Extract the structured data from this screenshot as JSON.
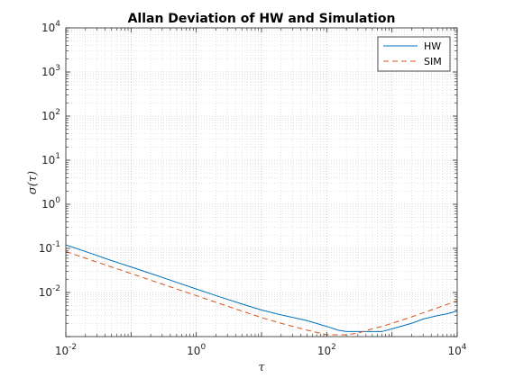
{
  "chart_data": {
    "type": "line",
    "title": "Allan Deviation of HW and Simulation",
    "xlabel": "τ",
    "ylabel": "σ(τ)",
    "xscale": "log",
    "yscale": "log",
    "xlim": [
      0.01,
      10000
    ],
    "ylim": [
      0.001,
      10000
    ],
    "x_tick_exponents": [
      -2,
      0,
      2,
      4
    ],
    "y_tick_exponents": [
      -2,
      -1,
      0,
      1,
      2,
      3,
      4
    ],
    "grid": true,
    "minor_grid": true,
    "legend_position": "top-right",
    "series": [
      {
        "name": "HW",
        "color": "#0072BD",
        "style": "solid",
        "x": [
          0.01,
          0.02,
          0.05,
          0.1,
          0.2,
          0.5,
          1,
          2,
          5,
          10,
          20,
          50,
          100,
          150,
          200,
          300,
          500,
          700,
          1000,
          2000,
          3000,
          5000,
          7000,
          10000
        ],
        "y": [
          0.12,
          0.085,
          0.053,
          0.038,
          0.027,
          0.017,
          0.012,
          0.0085,
          0.0055,
          0.004,
          0.0031,
          0.0023,
          0.0017,
          0.0014,
          0.0013,
          0.0013,
          0.0013,
          0.0013,
          0.0015,
          0.002,
          0.0025,
          0.003,
          0.0033,
          0.0038
        ]
      },
      {
        "name": "SIM",
        "color": "#D95319",
        "style": "dashed",
        "x": [
          0.01,
          0.02,
          0.05,
          0.1,
          0.2,
          0.5,
          1,
          2,
          5,
          10,
          20,
          50,
          100,
          150,
          200,
          300,
          500,
          700,
          1000,
          2000,
          5000,
          10000
        ],
        "y": [
          0.085,
          0.06,
          0.038,
          0.027,
          0.019,
          0.012,
          0.0085,
          0.006,
          0.0038,
          0.0027,
          0.002,
          0.0014,
          0.0011,
          0.0011,
          0.0011,
          0.0012,
          0.0015,
          0.0017,
          0.002,
          0.0028,
          0.0045,
          0.0065
        ]
      }
    ]
  }
}
